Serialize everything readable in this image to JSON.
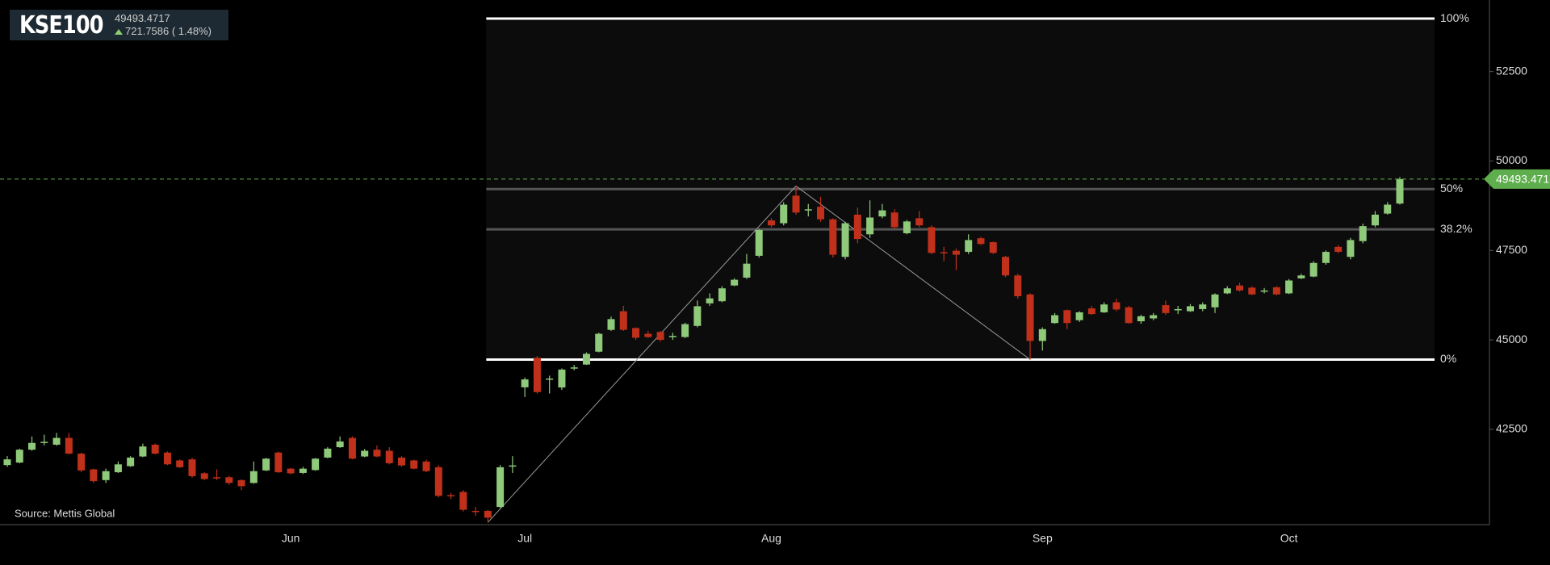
{
  "header": {
    "symbol": "KSE100",
    "price": "49493.4717",
    "change": "721.7586 ( 1.48%)"
  },
  "chart_data": {
    "type": "candlestick",
    "source": "Source: Mettis Global",
    "categories": [
      null,
      null,
      null,
      null,
      null,
      null,
      null,
      null,
      null,
      null,
      null,
      null,
      null,
      null,
      null,
      null,
      null,
      null,
      null,
      null,
      null,
      null,
      null,
      "Jun",
      null,
      null,
      null,
      null,
      null,
      null,
      null,
      null,
      null,
      null,
      null,
      null,
      null,
      null,
      null,
      null,
      null,
      null,
      "Jul",
      null,
      null,
      null,
      null,
      null,
      null,
      null,
      null,
      null,
      null,
      null,
      null,
      null,
      null,
      null,
      null,
      null,
      null,
      null,
      "Aug",
      null,
      null,
      null,
      null,
      null,
      null,
      null,
      null,
      null,
      null,
      null,
      null,
      null,
      null,
      null,
      null,
      null,
      null,
      null,
      null,
      null,
      "Sep",
      null,
      null,
      null,
      null,
      null,
      null,
      null,
      null,
      null,
      null,
      null,
      null,
      null,
      null,
      null,
      null,
      null,
      null,
      null,
      "Oct",
      null,
      null,
      null,
      null,
      null,
      null,
      null,
      null,
      null
    ],
    "open": [
      41500,
      41570,
      41930,
      42120,
      42070,
      42260,
      41820,
      41380,
      41080,
      41300,
      41470,
      41740,
      42070,
      41850,
      41630,
      41660,
      41270,
      41160,
      41160,
      41080,
      41000,
      41350,
      41850,
      41400,
      41280,
      41360,
      41710,
      42000,
      42260,
      41740,
      41930,
      41900,
      41710,
      41630,
      41600,
      41440,
      40660,
      40750,
      40220,
      40220,
      40330,
      41460,
      43674,
      44500,
      43900,
      43670,
      44200,
      44310,
      44670,
      45280,
      45800,
      45330,
      45170,
      45220,
      45090,
      45080,
      45390,
      46020,
      46080,
      46520,
      46740,
      47350,
      48340,
      48260,
      49030,
      48620,
      48720,
      48370,
      47320,
      48500,
      47950,
      48450,
      48560,
      47980,
      48400,
      48150,
      47450,
      47490,
      47460,
      47840,
      47730,
      47320,
      46800,
      46270,
      44970,
      45470,
      45830,
      45550,
      45880,
      45770,
      46050,
      45910,
      45520,
      45600,
      45970,
      45850,
      45800,
      45860,
      45910,
      46300,
      46520,
      46460,
      46370,
      46470,
      46300,
      46720,
      46770,
      47150,
      47600,
      47320,
      47760,
      48200,
      48530,
      48810
    ],
    "high": [
      41750,
      41960,
      42300,
      42350,
      42400,
      42400,
      41850,
      41400,
      41400,
      41600,
      41750,
      42100,
      42100,
      41880,
      41660,
      41700,
      41300,
      41380,
      41200,
      41100,
      41600,
      41700,
      41880,
      41420,
      41450,
      41700,
      42000,
      42300,
      42300,
      41950,
      42050,
      42000,
      41750,
      41650,
      41650,
      41500,
      40720,
      40800,
      40330,
      40250,
      41500,
      41750,
      43950,
      44550,
      44000,
      44200,
      44300,
      44650,
      45200,
      45650,
      45950,
      45350,
      45250,
      45250,
      45200,
      45480,
      46100,
      46300,
      46500,
      46720,
      47400,
      48100,
      48400,
      48850,
      49300,
      48800,
      49000,
      48400,
      48300,
      48700,
      48900,
      48800,
      48650,
      48350,
      48600,
      48200,
      47600,
      47550,
      47950,
      47880,
      47750,
      47350,
      46850,
      46300,
      45350,
      45750,
      45850,
      45800,
      45950,
      46050,
      46150,
      45950,
      45700,
      45750,
      46100,
      45950,
      46000,
      46050,
      46300,
      46500,
      46600,
      46500,
      46450,
      46500,
      46700,
      46850,
      47200,
      47500,
      47650,
      47850,
      48250,
      48600,
      48850,
      49550
    ],
    "low": [
      41450,
      41550,
      41900,
      42050,
      42040,
      41800,
      41300,
      41000,
      41000,
      41280,
      41450,
      41720,
      41800,
      41500,
      41420,
      41150,
      41080,
      41080,
      40950,
      40800,
      40980,
      41330,
      41280,
      41240,
      41250,
      41340,
      41690,
      41980,
      41660,
      41720,
      41720,
      41520,
      41450,
      41380,
      41300,
      40600,
      40550,
      40200,
      40080,
      39900,
      40300,
      41280,
      43400,
      43500,
      43500,
      43600,
      44150,
      44300,
      44650,
      45250,
      45250,
      45000,
      45050,
      44950,
      45000,
      45050,
      45350,
      45950,
      46050,
      46500,
      46700,
      47300,
      48150,
      48200,
      48500,
      48450,
      48300,
      47300,
      47250,
      47700,
      47850,
      48400,
      48100,
      47950,
      48150,
      47400,
      47200,
      46950,
      47400,
      47650,
      47400,
      46750,
      46150,
      44450,
      44700,
      45450,
      45300,
      45500,
      45700,
      45750,
      45800,
      45450,
      45450,
      45550,
      45700,
      45720,
      45780,
      45800,
      45750,
      46280,
      46350,
      46250,
      46300,
      46250,
      46280,
      46700,
      46750,
      47100,
      47420,
      47250,
      47700,
      48150,
      48500,
      48780
    ],
    "close": [
      41660,
      41930,
      42120,
      42150,
      42260,
      41820,
      41350,
      41050,
      41330,
      41520,
      41710,
      42020,
      41820,
      41520,
      41440,
      41190,
      41110,
      41130,
      41000,
      40910,
      41330,
      41680,
      41300,
      41270,
      41400,
      41680,
      41960,
      42160,
      41680,
      41900,
      41740,
      41550,
      41490,
      41400,
      41330,
      40640,
      40640,
      40250,
      40200,
      40030,
      41440,
      41490,
      43895,
      43540,
      43920,
      44170,
      44230,
      44610,
      45170,
      45580,
      45280,
      45060,
      45080,
      45000,
      45110,
      45440,
      45940,
      46160,
      46440,
      46680,
      47130,
      48070,
      48200,
      48780,
      48560,
      48650,
      48370,
      47380,
      48260,
      47820,
      48420,
      48620,
      48150,
      48310,
      48200,
      47430,
      47440,
      47380,
      47790,
      47680,
      47430,
      46800,
      46220,
      44970,
      45300,
      45690,
      45470,
      45770,
      45720,
      45990,
      45850,
      45470,
      45660,
      45690,
      45750,
      45860,
      45940,
      45990,
      46270,
      46440,
      46380,
      46270,
      46380,
      46270,
      46660,
      46800,
      47150,
      47460,
      47460,
      47790,
      48180,
      48500,
      48780,
      49493.4717
    ],
    "up_color": "#8fc97a",
    "down_color": "#c0301a",
    "ylim": [
      39835,
      54500
    ],
    "yticks": [
      42500,
      45000,
      47500,
      50000,
      52500
    ],
    "last_price": 49493.4717,
    "last_price_color": "#5fae4e",
    "fib_levels": [
      {
        "label": "100%",
        "price": 53980,
        "color": "#ffffff"
      },
      {
        "label": "50%",
        "price": 49215,
        "color": "#555555"
      },
      {
        "label": "38.2%",
        "price": 48090,
        "color": "#555555"
      },
      {
        "label": "0%",
        "price": 44450,
        "color": "#ffffff"
      }
    ]
  }
}
